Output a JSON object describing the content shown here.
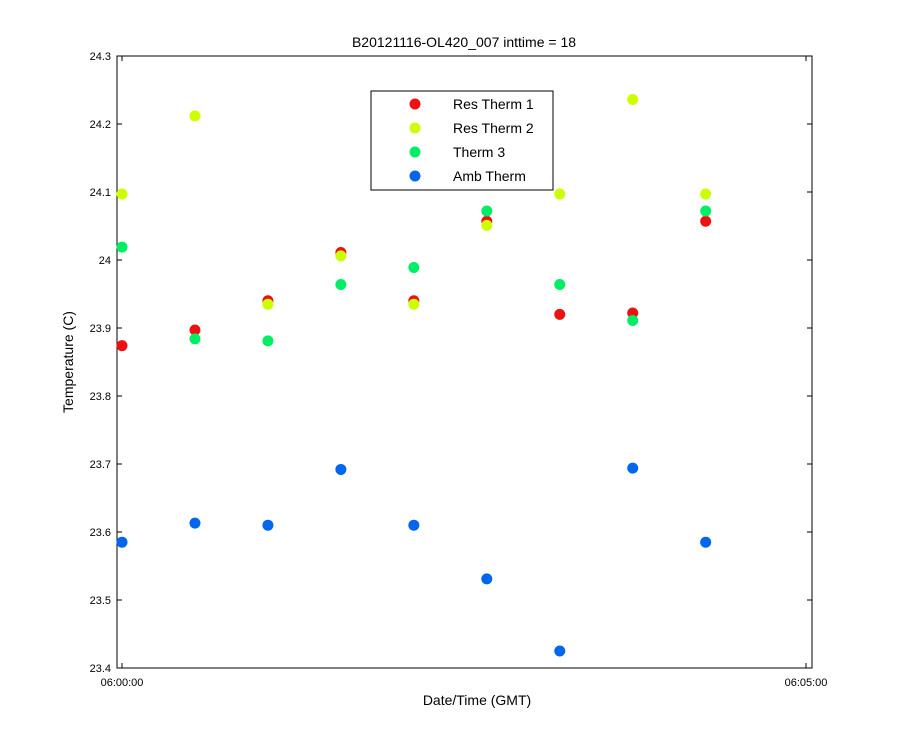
{
  "chart_data": {
    "type": "scatter",
    "title": "B20121116-OL420_007 inttime = 18",
    "xlabel": "Date/Time (GMT)",
    "ylabel": "Temperature (C)",
    "ylim": [
      23.4,
      24.3
    ],
    "yticks": [
      "23.4",
      "23.5",
      "23.6",
      "23.7",
      "23.8",
      "23.9",
      "24",
      "24.1",
      "24.2",
      "24.3"
    ],
    "xlim_seconds": [
      0,
      300
    ],
    "xtick_labels": [
      "06:00:00",
      "06:05:00"
    ],
    "grid": false,
    "legend_position": "top-center",
    "x_seconds": [
      0,
      32,
      64,
      96,
      128,
      160,
      192,
      224,
      256
    ],
    "series": [
      {
        "name": "Res Therm 1",
        "color": "#ee1111",
        "values": [
          23.874,
          23.897,
          23.94,
          24.011,
          23.94,
          24.057,
          23.92,
          23.922,
          24.057
        ]
      },
      {
        "name": "Res Therm 2",
        "color": "#ccff00",
        "values": [
          24.097,
          24.212,
          23.935,
          24.006,
          23.935,
          24.051,
          24.097,
          24.236,
          24.097
        ]
      },
      {
        "name": "Therm 3",
        "color": "#00ee66",
        "values": [
          24.019,
          23.884,
          23.881,
          23.964,
          23.989,
          24.072,
          23.964,
          23.911,
          24.072
        ]
      },
      {
        "name": "Amb Therm",
        "color": "#0066ee",
        "values": [
          23.585,
          23.613,
          23.61,
          23.692,
          23.61,
          23.531,
          23.425,
          23.694,
          23.585
        ]
      }
    ]
  }
}
